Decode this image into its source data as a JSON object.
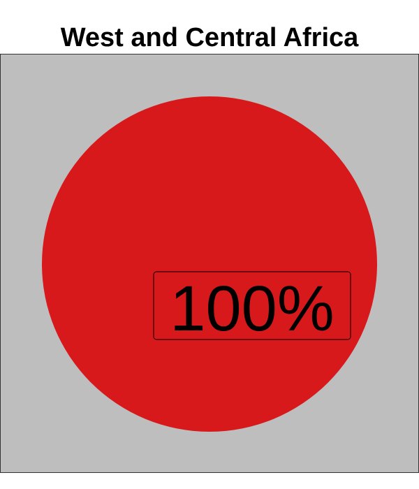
{
  "chart_data": {
    "type": "pie",
    "title": "West and Central Africa",
    "categories": [
      "West and Central Africa"
    ],
    "values": [
      100
    ],
    "labels": [
      "100%"
    ],
    "colors": {
      "slice": "#d7191c",
      "background": "#bebebe",
      "label_box_border": "#000000"
    },
    "legend": "none",
    "grid": false
  }
}
